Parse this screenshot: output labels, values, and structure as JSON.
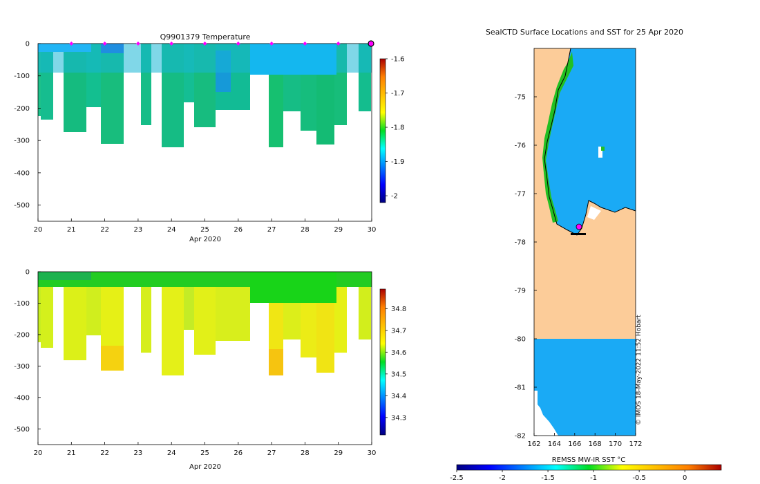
{
  "chart_data": [
    {
      "type": "heatmap",
      "name": "temperature-section",
      "title": "Q9901379  Temperature",
      "xlabel": "Apr 2020",
      "ylabel": "",
      "xlim": [
        20,
        30
      ],
      "ylim": [
        -550,
        0
      ],
      "xticks": [
        "20",
        "21",
        "22",
        "23",
        "24",
        "25",
        "26",
        "27",
        "28",
        "29",
        "30"
      ],
      "yticks": [
        "0",
        "-100",
        "-200",
        "-300",
        "-400",
        "-500"
      ],
      "profile_markers_x": [
        21,
        22,
        23,
        24,
        25,
        26,
        27,
        28,
        29
      ],
      "last_profile_x": 30,
      "colorbar": {
        "ticks": [
          "-1.6",
          "-1.7",
          "-1.8",
          "-1.9",
          "-2"
        ],
        "range": [
          -2.02,
          -1.6
        ]
      }
    },
    {
      "type": "heatmap",
      "name": "salinity-section",
      "title": "",
      "xlabel": "Apr 2020",
      "ylabel": "",
      "xlim": [
        20,
        30
      ],
      "ylim": [
        -550,
        0
      ],
      "xticks": [
        "20",
        "21",
        "22",
        "23",
        "24",
        "25",
        "26",
        "27",
        "28",
        "29",
        "30"
      ],
      "yticks": [
        "0",
        "-100",
        "-200",
        "-300",
        "-400",
        "-500"
      ],
      "colorbar": {
        "ticks": [
          "34.8",
          "34.7",
          "34.6",
          "34.5",
          "34.4",
          "34.3"
        ],
        "range": [
          34.22,
          34.89
        ]
      }
    },
    {
      "type": "heatmap",
      "name": "surface-sst-map",
      "title": "SealCTD Surface Locations and SST for 25 Apr 2020",
      "xlabel": "REMSS MW-IR SST °C",
      "xlim": [
        162,
        172
      ],
      "ylim": [
        -82,
        -74
      ],
      "xticks": [
        "162",
        "164",
        "166",
        "168",
        "170",
        "172"
      ],
      "yticks": [
        "-75",
        "-76",
        "-77",
        "-78",
        "-79",
        "-80",
        "-81",
        "-82"
      ],
      "colorbar": {
        "ticks": [
          "-2.5",
          "-2",
          "-1.5",
          "-1",
          "-0.5",
          "0"
        ],
        "range": [
          -2.5,
          0.4
        ]
      },
      "credit": "© IMOS 18-May-2022 11:52 Hobart"
    }
  ],
  "colors": {
    "land": "#fccc99",
    "sea_sst": "#1aaaf5",
    "marker": "#ff00ff",
    "panel_bg": "#ffffff"
  }
}
